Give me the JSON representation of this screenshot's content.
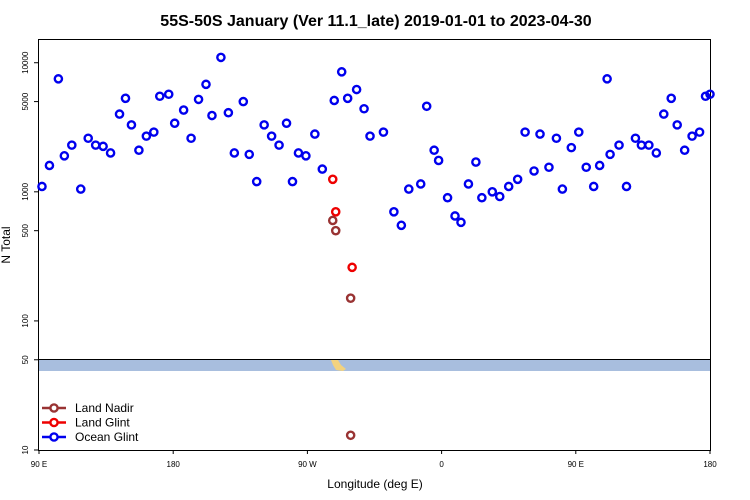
{
  "chart_data": {
    "type": "scatter",
    "title": "55S-50S January (Ver 11.1_late)   2019-01-01 to 2023-04-30",
    "xlabel": "Longitude (deg E)",
    "ylabel": "N Total",
    "x_ticks": [
      {
        "value": 90,
        "label": "90 E"
      },
      {
        "value": 180,
        "label": "180"
      },
      {
        "value": 270,
        "label": "90 W"
      },
      {
        "value": 360,
        "label": "0"
      },
      {
        "value": 450,
        "label": "90 E"
      },
      {
        "value": 540,
        "label": "180"
      }
    ],
    "xlim": [
      90,
      540
    ],
    "y_scale": "log",
    "ylim": [
      10,
      15000
    ],
    "y_ticks": [
      {
        "value": 10,
        "label": "10"
      },
      {
        "value": 50,
        "label": "50"
      },
      {
        "value": 100,
        "label": "100"
      },
      {
        "value": 500,
        "label": "500"
      },
      {
        "value": 1000,
        "label": "1000"
      },
      {
        "value": 5000,
        "label": "5000"
      },
      {
        "value": 10000,
        "label": "10000"
      }
    ],
    "legend_placement": "bottom-left",
    "series": [
      {
        "name": "Land Nadir",
        "color": "#993333",
        "points": [
          [
            287,
            600
          ],
          [
            289,
            500
          ],
          [
            299,
            150
          ],
          [
            299,
            13
          ]
        ]
      },
      {
        "name": "Land Glint",
        "color": "#ee0000",
        "points": [
          [
            287,
            1250
          ],
          [
            289,
            700
          ],
          [
            300,
            260
          ]
        ]
      },
      {
        "name": "Ocean Glint",
        "color": "#0000ee",
        "points": [
          [
            92,
            1100
          ],
          [
            97,
            1600
          ],
          [
            103,
            7500
          ],
          [
            107,
            1900
          ],
          [
            112,
            2300
          ],
          [
            118,
            1050
          ],
          [
            123,
            2600
          ],
          [
            128,
            2300
          ],
          [
            133,
            2250
          ],
          [
            138,
            2000
          ],
          [
            144,
            4000
          ],
          [
            148,
            5300
          ],
          [
            152,
            3300
          ],
          [
            157,
            2100
          ],
          [
            162,
            2700
          ],
          [
            167,
            2900
          ],
          [
            171,
            5500
          ],
          [
            177,
            5700
          ],
          [
            181,
            3400
          ],
          [
            187,
            4300
          ],
          [
            192,
            2600
          ],
          [
            197,
            5200
          ],
          [
            202,
            6800
          ],
          [
            206,
            3900
          ],
          [
            212,
            11000
          ],
          [
            217,
            4100
          ],
          [
            221,
            2000
          ],
          [
            227,
            5000
          ],
          [
            231,
            1950
          ],
          [
            236,
            1200
          ],
          [
            241,
            3300
          ],
          [
            246,
            2700
          ],
          [
            251,
            2300
          ],
          [
            256,
            3400
          ],
          [
            260,
            1200
          ],
          [
            264,
            2000
          ],
          [
            269,
            1900
          ],
          [
            275,
            2800
          ],
          [
            280,
            1500
          ],
          [
            288,
            5100
          ],
          [
            293,
            8500
          ],
          [
            297,
            5300
          ],
          [
            303,
            6200
          ],
          [
            308,
            4400
          ],
          [
            312,
            2700
          ],
          [
            321,
            2900
          ],
          [
            328,
            700
          ],
          [
            333,
            550
          ],
          [
            338,
            1050
          ],
          [
            346,
            1150
          ],
          [
            350,
            4600
          ],
          [
            355,
            2100
          ],
          [
            358,
            1750
          ],
          [
            364,
            900
          ],
          [
            369,
            650
          ],
          [
            373,
            580
          ],
          [
            378,
            1150
          ],
          [
            383,
            1700
          ],
          [
            387,
            900
          ],
          [
            394,
            1000
          ],
          [
            399,
            920
          ],
          [
            405,
            1100
          ],
          [
            411,
            1250
          ],
          [
            416,
            2900
          ],
          [
            422,
            1450
          ],
          [
            426,
            2800
          ],
          [
            432,
            1550
          ],
          [
            437,
            2600
          ],
          [
            441,
            1050
          ],
          [
            447,
            2200
          ],
          [
            452,
            2900
          ],
          [
            457,
            1550
          ],
          [
            462,
            1100
          ],
          [
            466,
            1600
          ],
          [
            471,
            7500
          ],
          [
            473,
            1950
          ],
          [
            479,
            2300
          ],
          [
            484,
            1100
          ],
          [
            490,
            2600
          ],
          [
            494,
            2300
          ],
          [
            499,
            2300
          ],
          [
            504,
            2000
          ],
          [
            509,
            4000
          ],
          [
            514,
            5300
          ],
          [
            518,
            3300
          ],
          [
            523,
            2100
          ],
          [
            528,
            2700
          ],
          [
            533,
            2900
          ],
          [
            537,
            5500
          ],
          [
            540,
            5700
          ]
        ]
      }
    ]
  }
}
